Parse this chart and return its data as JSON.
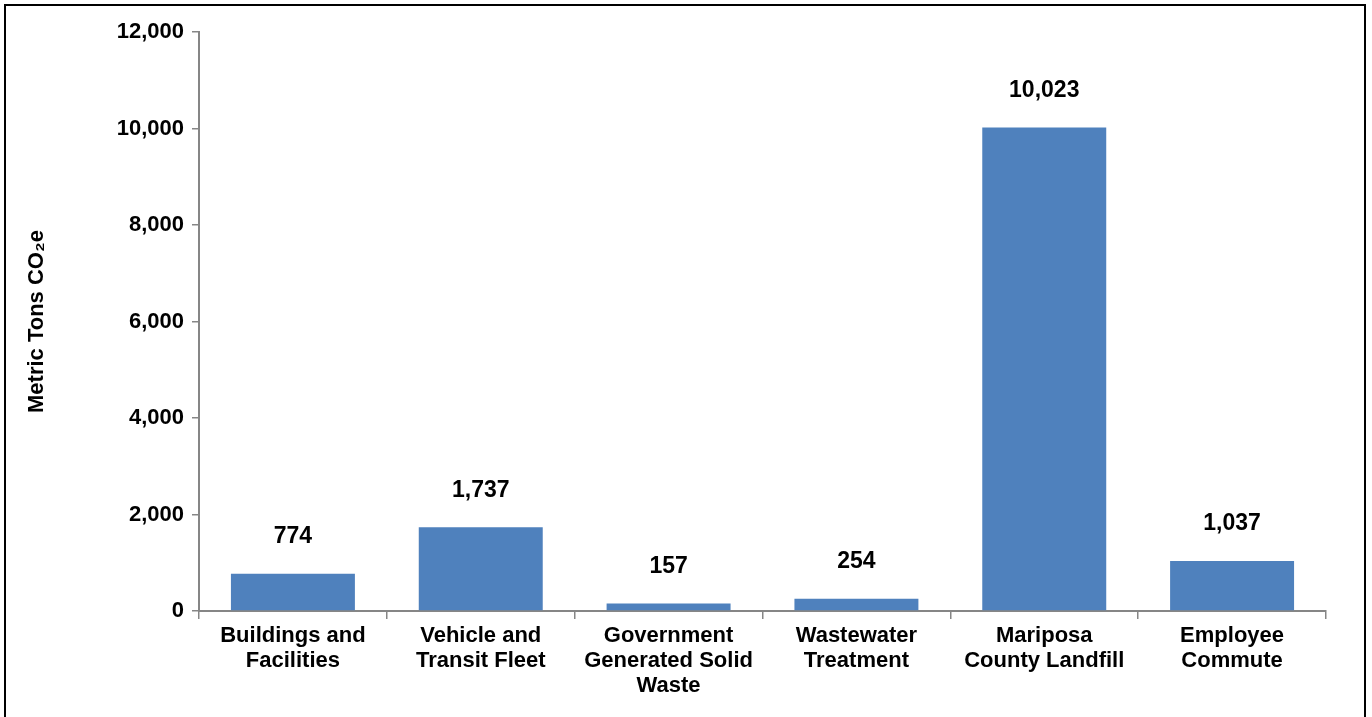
{
  "chart_data": {
    "type": "bar",
    "ylabel": "Metric Tons CO₂e",
    "categories": [
      "Buildings and Facilities",
      "Vehicle and Transit Fleet",
      "Government Generated Solid Waste",
      "Wastewater Treatment",
      "Mariposa County Landfill",
      "Employee Commute"
    ],
    "values": [
      774,
      1737,
      157,
      254,
      10023,
      1037
    ],
    "color": "#4f81bd",
    "ylim": [
      0,
      12000
    ],
    "yticks": [
      0,
      {
        "value": 2000,
        "label": "2,000"
      },
      {
        "value": 4000,
        "label": "4,000"
      },
      {
        "value": 6000,
        "label": "6,000"
      },
      {
        "value": 8000,
        "label": "8,000"
      },
      {
        "value": 10000,
        "label": "10,000"
      },
      {
        "value": 12000,
        "label": "12,000"
      }
    ],
    "value_labels": [
      "774",
      "1,737",
      "157",
      "254",
      "10,023",
      "1,037"
    ]
  }
}
